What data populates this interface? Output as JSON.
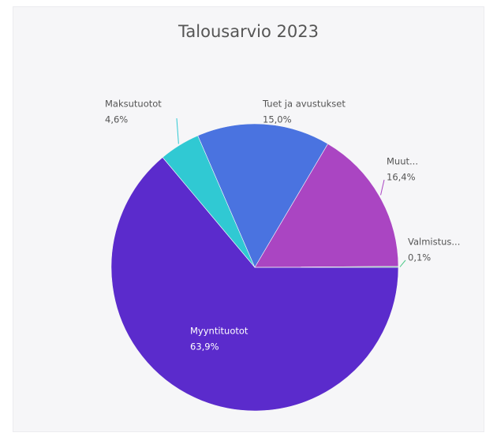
{
  "chart_data": {
    "type": "pie",
    "title": "Talousarvio 2023",
    "categories": [
      "Myyntituotot",
      "Maksutuotot",
      "Tuet ja avustukset",
      "Muut...",
      "Valmistus..."
    ],
    "values": [
      63.9,
      4.6,
      15.0,
      16.4,
      0.1
    ],
    "value_labels": [
      "63,9%",
      "4,6%",
      "15,0%",
      "16,4%",
      "0,1%"
    ],
    "colors": [
      "#5b2bcc",
      "#30c9d3",
      "#4a73e0",
      "#aa45c2",
      "#4fc98a"
    ]
  }
}
